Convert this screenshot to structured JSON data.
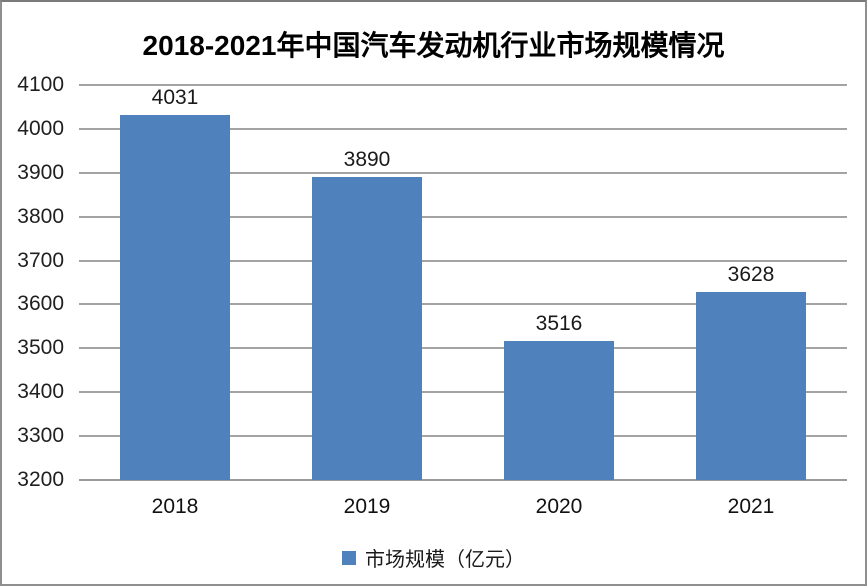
{
  "chart_data": {
    "type": "bar",
    "title": "2018-2021年中国汽车发动机行业市场规模情况",
    "categories": [
      "2018",
      "2019",
      "2020",
      "2021"
    ],
    "values": [
      4031,
      3890,
      3516,
      3628
    ],
    "series_name": "市场规模（亿元）",
    "legend": [
      "市场规模（亿元）"
    ],
    "legend_position": "bottom",
    "xlabel": "",
    "ylabel": "",
    "ylim": [
      3200,
      4100
    ],
    "yticks": [
      3200,
      3300,
      3400,
      3500,
      3600,
      3700,
      3800,
      3900,
      4000,
      4100
    ],
    "grid": true,
    "data_labels": true,
    "colors": {
      "bar": "#4f81bd",
      "gridline": "#a3a3a3",
      "baseline": "#9a9a9a",
      "title_text": "#000000",
      "tick_text": "#1f1f1f"
    }
  }
}
